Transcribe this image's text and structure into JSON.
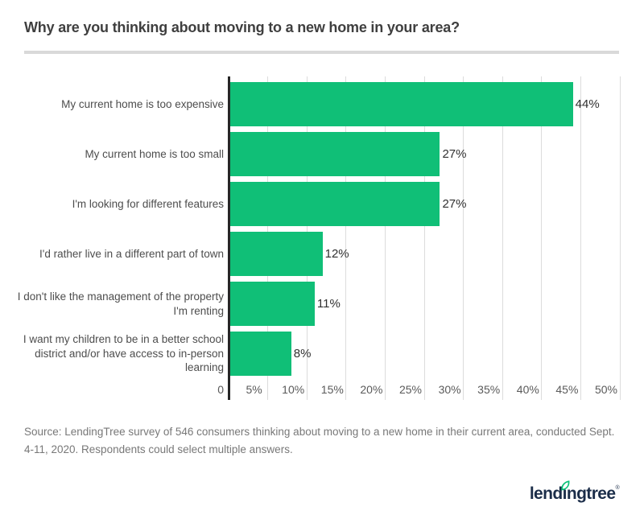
{
  "header": {
    "title": "Why are you thinking about moving to a new home in your area?"
  },
  "chart_data": {
    "type": "bar",
    "orientation": "horizontal",
    "title": "Why are you thinking about moving to a new home in your area?",
    "categories": [
      "My current home is too expensive",
      "My current home is too small",
      "I'm looking for different features",
      "I'd rather live in a different part of town",
      "I don't like the management of the property I'm renting",
      "I want my children to be in a better school district and/or have access to in-person learning"
    ],
    "values": [
      44,
      27,
      27,
      12,
      11,
      8
    ],
    "value_labels": [
      "44%",
      "27%",
      "27%",
      "12%",
      "11%",
      "8%"
    ],
    "x_ticks": [
      "0",
      "5%",
      "10%",
      "15%",
      "20%",
      "25%",
      "30%",
      "35%",
      "40%",
      "45%",
      "50%"
    ],
    "xlim": [
      0,
      50
    ],
    "grid": true,
    "legend": false,
    "xlabel": "",
    "ylabel": ""
  },
  "colors": {
    "bar_green": "#10bf77",
    "leaf_green": "#08c177",
    "logo_navy": "#1b2d49",
    "axis_line": "#262626",
    "gridline": "#dcdcdc",
    "divider": "#d9d9d9",
    "title_text": "#3f3f3f",
    "category_text": "#4d4d4d",
    "tick_text": "#5a5a5a",
    "value_text": "#303030",
    "source_text": "#787878"
  },
  "footer": {
    "source_text": "Source: LendingTree survey of 546 consumers thinking about moving to a new home in their current area, conducted Sept. 4-11, 2020. Respondents could select multiple answers.",
    "logo": {
      "part1": "lend",
      "part2": "i",
      "part3": "ngtree",
      "reg": "®"
    }
  }
}
